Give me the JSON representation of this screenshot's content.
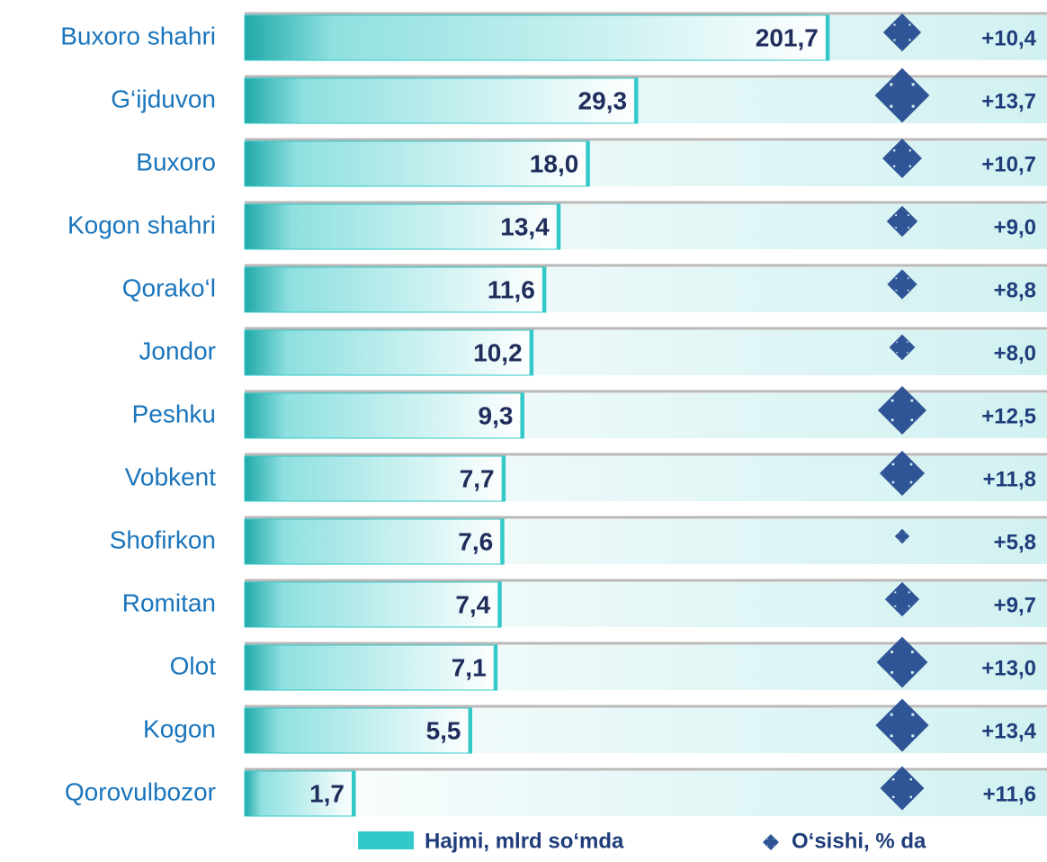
{
  "chart_data": {
    "type": "bar",
    "categories": [
      "Buxoro shahri",
      "G‘ijduvon",
      "Buxoro",
      "Kogon shahri",
      "Qorako‘l",
      "Jondor",
      "Peshku",
      "Vobkent",
      "Shofirkon",
      "Romitan",
      "Olot",
      "Kogon",
      "Qorovulbozor"
    ],
    "series": [
      {
        "name": "Hajmi, mlrd so‘mda",
        "color": "#33c9c9",
        "values": [
          201.7,
          29.3,
          18.0,
          13.4,
          11.6,
          10.2,
          9.3,
          7.7,
          7.6,
          7.4,
          7.1,
          5.5,
          1.7
        ],
        "value_labels": [
          "201,7",
          "29,3",
          "18,0",
          "13,4",
          "11,6",
          "10,2",
          "9,3",
          "7,7",
          "7,6",
          "7,4",
          "7,1",
          "5,5",
          "1,7"
        ]
      },
      {
        "name": "O‘sishi, % da",
        "color": "#2f5597",
        "values": [
          10.4,
          13.7,
          10.7,
          9.0,
          8.8,
          8.0,
          12.5,
          11.8,
          5.8,
          9.7,
          13.0,
          13.4,
          11.6
        ],
        "value_labels": [
          "+10,4",
          "+13,7",
          "+10,7",
          "+9,0",
          "+8,8",
          "+8,0",
          "+12,5",
          "+11,8",
          "+5,8",
          "+9,7",
          "+13,0",
          "+13,4",
          "+11,6"
        ]
      }
    ]
  }
}
